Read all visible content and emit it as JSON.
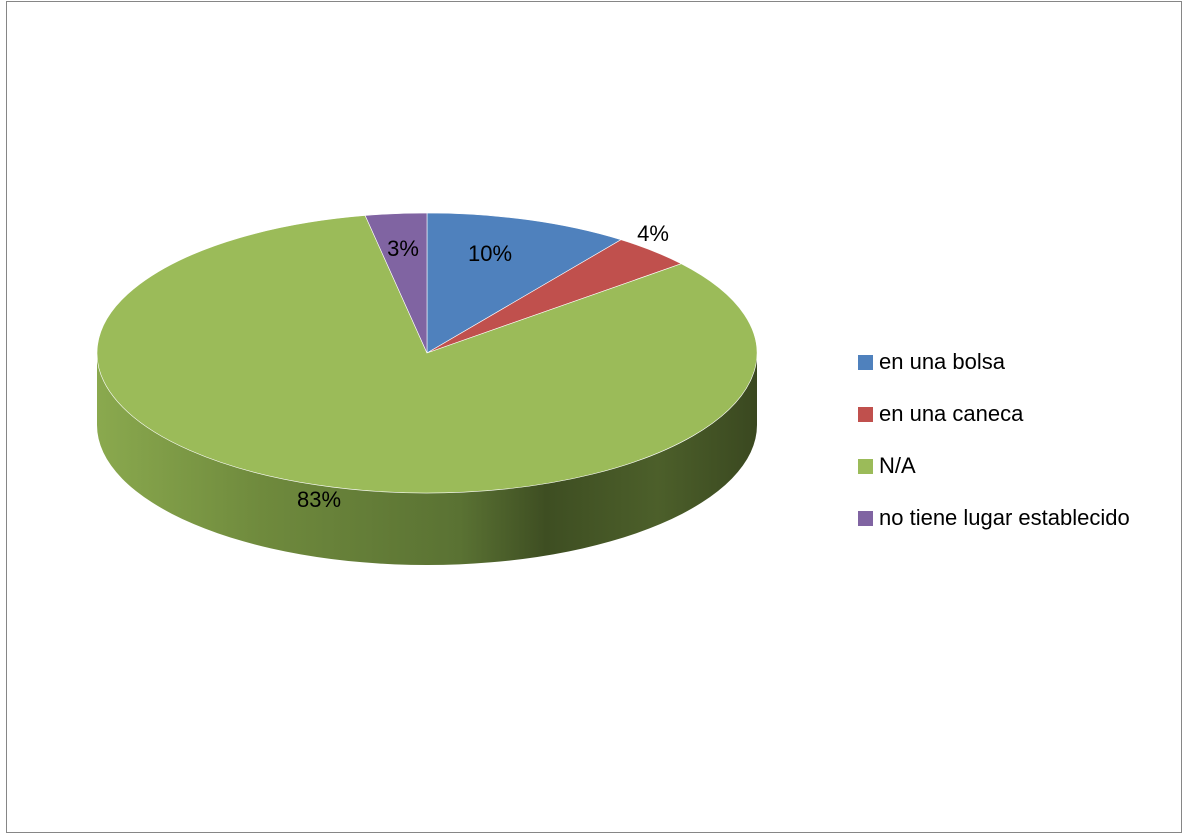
{
  "chart_data": {
    "type": "pie",
    "title": "",
    "style": "3d",
    "legend_position": "right",
    "slices": [
      {
        "label": "en una bolsa",
        "value": 10,
        "display": "10%",
        "color": "#4F81BD"
      },
      {
        "label": "en una caneca",
        "value": 4,
        "display": "4%",
        "color": "#C0504D"
      },
      {
        "label": "N/A",
        "value": 83,
        "display": "83%",
        "color": "#9BBB59"
      },
      {
        "label": "no tiene lugar establecido",
        "value": 3,
        "display": "3%",
        "color": "#8064A2"
      }
    ]
  }
}
